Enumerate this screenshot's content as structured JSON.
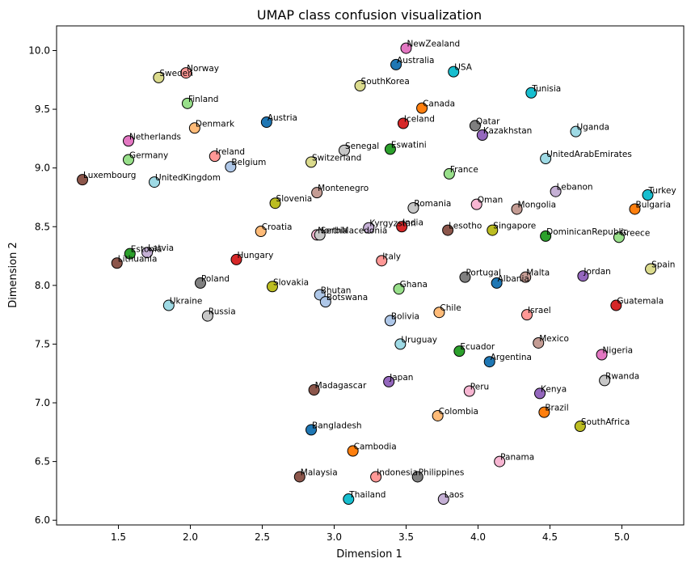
{
  "chart_data": {
    "type": "scatter",
    "title": "UMAP class confusion visualization",
    "xlabel": "Dimension 1",
    "ylabel": "Dimension 2",
    "xlim": [
      1.07,
      5.43
    ],
    "ylim": [
      5.96,
      10.21
    ],
    "xticks": [
      "1.5",
      "2.0",
      "2.5",
      "3.0",
      "3.5",
      "4.0",
      "4.5",
      "5.0"
    ],
    "xtick_values": [
      1.5,
      2.0,
      2.5,
      3.0,
      3.5,
      4.0,
      4.5,
      5.0
    ],
    "yticks": [
      "6.0",
      "6.5",
      "7.0",
      "7.5",
      "8.0",
      "8.5",
      "9.0",
      "9.5",
      "10.0"
    ],
    "ytick_values": [
      6.0,
      6.5,
      7.0,
      7.5,
      8.0,
      8.5,
      9.0,
      9.5,
      10.0
    ],
    "grid": false,
    "marker_edge_color": "#000000",
    "points": [
      {
        "label": "NewZealand",
        "x": 3.5,
        "y": 10.02,
        "color": "#e377c2"
      },
      {
        "label": "Australia",
        "x": 3.43,
        "y": 9.88,
        "color": "#1f77b4"
      },
      {
        "label": "USA",
        "x": 3.83,
        "y": 9.82,
        "color": "#17becf"
      },
      {
        "label": "Norway",
        "x": 1.97,
        "y": 9.81,
        "color": "#ff9896"
      },
      {
        "label": "Sweden",
        "x": 1.78,
        "y": 9.77,
        "color": "#dbdb8d"
      },
      {
        "label": "SouthKorea",
        "x": 3.18,
        "y": 9.7,
        "color": "#dbdb8d"
      },
      {
        "label": "Tunisia",
        "x": 4.37,
        "y": 9.64,
        "color": "#17becf"
      },
      {
        "label": "Finland",
        "x": 1.98,
        "y": 9.55,
        "color": "#98df8a"
      },
      {
        "label": "Canada",
        "x": 3.61,
        "y": 9.51,
        "color": "#ff7f0e"
      },
      {
        "label": "Austria",
        "x": 2.53,
        "y": 9.39,
        "color": "#1f77b4"
      },
      {
        "label": "Iceland",
        "x": 3.48,
        "y": 9.38,
        "color": "#d62728"
      },
      {
        "label": "Qatar",
        "x": 3.98,
        "y": 9.36,
        "color": "#7f7f7f"
      },
      {
        "label": "Denmark",
        "x": 2.03,
        "y": 9.34,
        "color": "#ffbb78"
      },
      {
        "label": "Uganda",
        "x": 4.68,
        "y": 9.31,
        "color": "#9edae5"
      },
      {
        "label": "Kazakhstan",
        "x": 4.03,
        "y": 9.28,
        "color": "#9467bd"
      },
      {
        "label": "Netherlands",
        "x": 1.57,
        "y": 9.23,
        "color": "#e377c2"
      },
      {
        "label": "Eswatini",
        "x": 3.39,
        "y": 9.16,
        "color": "#2ca02c"
      },
      {
        "label": "Senegal",
        "x": 3.07,
        "y": 9.15,
        "color": "#c7c7c7"
      },
      {
        "label": "Ireland",
        "x": 2.17,
        "y": 9.1,
        "color": "#ff9896"
      },
      {
        "label": "UnitedArabEmirates",
        "x": 4.47,
        "y": 9.08,
        "color": "#9edae5"
      },
      {
        "label": "Germany",
        "x": 1.57,
        "y": 9.07,
        "color": "#98df8a"
      },
      {
        "label": "Switzerland",
        "x": 2.84,
        "y": 9.05,
        "color": "#dbdb8d"
      },
      {
        "label": "Belgium",
        "x": 2.28,
        "y": 9.01,
        "color": "#aec7e8"
      },
      {
        "label": "France",
        "x": 3.8,
        "y": 8.95,
        "color": "#98df8a"
      },
      {
        "label": "Luxembourg",
        "x": 1.25,
        "y": 8.9,
        "color": "#8c564b"
      },
      {
        "label": "UnitedKingdom",
        "x": 1.75,
        "y": 8.88,
        "color": "#9edae5"
      },
      {
        "label": "Lebanon",
        "x": 4.54,
        "y": 8.8,
        "color": "#c5b0d5"
      },
      {
        "label": "Montenegro",
        "x": 2.88,
        "y": 8.79,
        "color": "#c49c94"
      },
      {
        "label": "Turkey",
        "x": 5.18,
        "y": 8.77,
        "color": "#17becf"
      },
      {
        "label": "Slovenia",
        "x": 2.59,
        "y": 8.7,
        "color": "#bcbd22"
      },
      {
        "label": "Oman",
        "x": 3.99,
        "y": 8.69,
        "color": "#f7b6d2"
      },
      {
        "label": "Romania",
        "x": 3.55,
        "y": 8.66,
        "color": "#c7c7c7"
      },
      {
        "label": "Mongolia",
        "x": 4.27,
        "y": 8.65,
        "color": "#c49c94"
      },
      {
        "label": "Bulgaria",
        "x": 5.09,
        "y": 8.65,
        "color": "#ff7f0e"
      },
      {
        "label": "India",
        "x": 3.47,
        "y": 8.5,
        "color": "#d62728"
      },
      {
        "label": "Kyrgyzstan",
        "x": 3.24,
        "y": 8.49,
        "color": "#c5b0d5"
      },
      {
        "label": "Lesotho",
        "x": 3.79,
        "y": 8.47,
        "color": "#8c564b"
      },
      {
        "label": "Singapore",
        "x": 4.1,
        "y": 8.47,
        "color": "#bcbd22"
      },
      {
        "label": "Croatia",
        "x": 2.49,
        "y": 8.46,
        "color": "#ffbb78"
      },
      {
        "label": "NorthMacedonia",
        "x": 2.88,
        "y": 8.43,
        "color": "#f7b6d2"
      },
      {
        "label": "Serbia",
        "x": 2.9,
        "y": 8.43,
        "color": "#c7c7c7"
      },
      {
        "label": "DominicanRepublic",
        "x": 4.47,
        "y": 8.42,
        "color": "#2ca02c"
      },
      {
        "label": "Greece",
        "x": 4.98,
        "y": 8.41,
        "color": "#98df8a"
      },
      {
        "label": "Latvia",
        "x": 1.7,
        "y": 8.28,
        "color": "#c5b0d5"
      },
      {
        "label": "Estonia",
        "x": 1.58,
        "y": 8.27,
        "color": "#2ca02c"
      },
      {
        "label": "Hungary",
        "x": 2.32,
        "y": 8.22,
        "color": "#d62728"
      },
      {
        "label": "Italy",
        "x": 3.33,
        "y": 8.21,
        "color": "#ff9896"
      },
      {
        "label": "Lithuania",
        "x": 1.49,
        "y": 8.19,
        "color": "#8c564b"
      },
      {
        "label": "Spain",
        "x": 5.2,
        "y": 8.14,
        "color": "#dbdb8d"
      },
      {
        "label": "Jordan",
        "x": 4.73,
        "y": 8.08,
        "color": "#9467bd"
      },
      {
        "label": "Portugal",
        "x": 3.91,
        "y": 8.07,
        "color": "#7f7f7f"
      },
      {
        "label": "Malta",
        "x": 4.33,
        "y": 8.07,
        "color": "#c49c94"
      },
      {
        "label": "Albania",
        "x": 4.13,
        "y": 8.02,
        "color": "#1f77b4"
      },
      {
        "label": "Poland",
        "x": 2.07,
        "y": 8.02,
        "color": "#7f7f7f"
      },
      {
        "label": "Slovakia",
        "x": 2.57,
        "y": 7.99,
        "color": "#bcbd22"
      },
      {
        "label": "Ghana",
        "x": 3.45,
        "y": 7.97,
        "color": "#98df8a"
      },
      {
        "label": "Bhutan",
        "x": 2.9,
        "y": 7.92,
        "color": "#aec7e8"
      },
      {
        "label": "Botswana",
        "x": 2.94,
        "y": 7.86,
        "color": "#aec7e8"
      },
      {
        "label": "Guatemala",
        "x": 4.96,
        "y": 7.83,
        "color": "#d62728"
      },
      {
        "label": "Ukraine",
        "x": 1.85,
        "y": 7.83,
        "color": "#9edae5"
      },
      {
        "label": "Chile",
        "x": 3.73,
        "y": 7.77,
        "color": "#ffbb78"
      },
      {
        "label": "Israel",
        "x": 4.34,
        "y": 7.75,
        "color": "#ff9896"
      },
      {
        "label": "Russia",
        "x": 2.12,
        "y": 7.74,
        "color": "#c7c7c7"
      },
      {
        "label": "Bolivia",
        "x": 3.39,
        "y": 7.7,
        "color": "#aec7e8"
      },
      {
        "label": "Mexico",
        "x": 4.42,
        "y": 7.51,
        "color": "#c49c94"
      },
      {
        "label": "Uruguay",
        "x": 3.46,
        "y": 7.5,
        "color": "#9edae5"
      },
      {
        "label": "Ecuador",
        "x": 3.87,
        "y": 7.44,
        "color": "#2ca02c"
      },
      {
        "label": "Nigeria",
        "x": 4.86,
        "y": 7.41,
        "color": "#e377c2"
      },
      {
        "label": "Argentina",
        "x": 4.08,
        "y": 7.35,
        "color": "#1f77b4"
      },
      {
        "label": "Rwanda",
        "x": 4.88,
        "y": 7.19,
        "color": "#c7c7c7"
      },
      {
        "label": "Japan",
        "x": 3.38,
        "y": 7.18,
        "color": "#9467bd"
      },
      {
        "label": "Madagascar",
        "x": 2.86,
        "y": 7.11,
        "color": "#8c564b"
      },
      {
        "label": "Peru",
        "x": 3.94,
        "y": 7.1,
        "color": "#f7b6d2"
      },
      {
        "label": "Kenya",
        "x": 4.43,
        "y": 7.08,
        "color": "#9467bd"
      },
      {
        "label": "Brazil",
        "x": 4.46,
        "y": 6.92,
        "color": "#ff7f0e"
      },
      {
        "label": "Colombia",
        "x": 3.72,
        "y": 6.89,
        "color": "#ffbb78"
      },
      {
        "label": "SouthAfrica",
        "x": 4.71,
        "y": 6.8,
        "color": "#bcbd22"
      },
      {
        "label": "Bangladesh",
        "x": 2.84,
        "y": 6.77,
        "color": "#1f77b4"
      },
      {
        "label": "Cambodia",
        "x": 3.13,
        "y": 6.59,
        "color": "#ff7f0e"
      },
      {
        "label": "Panama",
        "x": 4.15,
        "y": 6.5,
        "color": "#f7b6d2"
      },
      {
        "label": "Malaysia",
        "x": 2.76,
        "y": 6.37,
        "color": "#8c564b"
      },
      {
        "label": "Indonesia",
        "x": 3.29,
        "y": 6.37,
        "color": "#ff9896"
      },
      {
        "label": "Philippines",
        "x": 3.58,
        "y": 6.37,
        "color": "#7f7f7f"
      },
      {
        "label": "Thailand",
        "x": 3.1,
        "y": 6.18,
        "color": "#17becf"
      },
      {
        "label": "Laos",
        "x": 3.76,
        "y": 6.18,
        "color": "#c5b0d5"
      }
    ]
  }
}
